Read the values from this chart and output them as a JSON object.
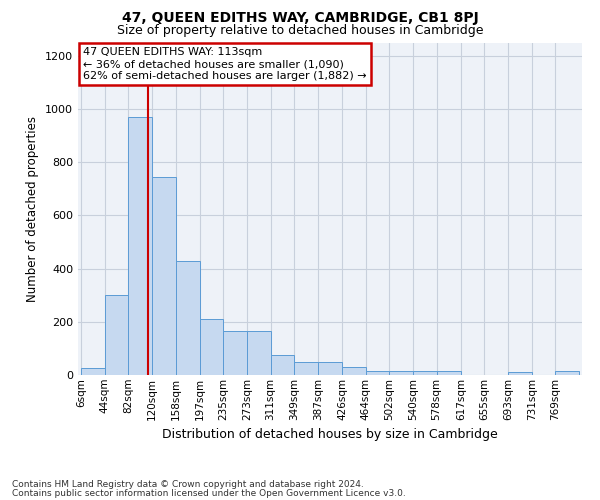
{
  "title": "47, QUEEN EDITHS WAY, CAMBRIDGE, CB1 8PJ",
  "subtitle": "Size of property relative to detached houses in Cambridge",
  "xlabel": "Distribution of detached houses by size in Cambridge",
  "ylabel": "Number of detached properties",
  "bin_labels": [
    "6sqm",
    "44sqm",
    "82sqm",
    "120sqm",
    "158sqm",
    "197sqm",
    "235sqm",
    "273sqm",
    "311sqm",
    "349sqm",
    "387sqm",
    "426sqm",
    "464sqm",
    "502sqm",
    "540sqm",
    "578sqm",
    "617sqm",
    "655sqm",
    "693sqm",
    "731sqm",
    "769sqm"
  ],
  "bin_edges": [
    6,
    44,
    82,
    120,
    158,
    197,
    235,
    273,
    311,
    349,
    387,
    426,
    464,
    502,
    540,
    578,
    617,
    655,
    693,
    731,
    769,
    807
  ],
  "bar_heights": [
    25,
    300,
    970,
    745,
    430,
    210,
    165,
    165,
    75,
    50,
    50,
    30,
    15,
    15,
    15,
    15,
    0,
    0,
    10,
    0,
    15
  ],
  "bar_color": "#c6d9f0",
  "bar_edge_color": "#5b9bd5",
  "property_size": 113,
  "vline_color": "#cc0000",
  "annotation_line1": "47 QUEEN EDITHS WAY: 113sqm",
  "annotation_line2": "← 36% of detached houses are smaller (1,090)",
  "annotation_line3": "62% of semi-detached houses are larger (1,882) →",
  "annotation_box_color": "#cc0000",
  "ylim": [
    0,
    1250
  ],
  "yticks": [
    0,
    200,
    400,
    600,
    800,
    1000,
    1200
  ],
  "grid_color": "#c8d0dc",
  "bg_color": "#eef2f8",
  "footer_line1": "Contains HM Land Registry data © Crown copyright and database right 2024.",
  "footer_line2": "Contains public sector information licensed under the Open Government Licence v3.0.",
  "title_fontsize": 10,
  "subtitle_fontsize": 9
}
